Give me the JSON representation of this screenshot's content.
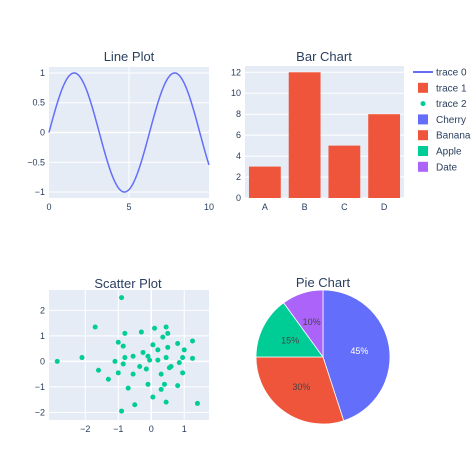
{
  "colors": {
    "plot_bg": "#e5ecf6",
    "grid": "#ffffff",
    "text": "#2a3f5f",
    "line": "#636efa",
    "bar": "#ef553b",
    "scatter": "#00cc96",
    "pie": [
      "#636efa",
      "#ef553b",
      "#00cc96",
      "#ab63fa"
    ]
  },
  "legend": {
    "placement": "top-right",
    "items": [
      {
        "label": "trace 0",
        "kind": "line",
        "color": "#636efa"
      },
      {
        "label": "trace 1",
        "kind": "square",
        "color": "#ef553b"
      },
      {
        "label": "trace 2",
        "kind": "dot",
        "color": "#00cc96"
      },
      {
        "label": "Cherry",
        "kind": "square",
        "color": "#636efa"
      },
      {
        "label": "Banana",
        "kind": "square",
        "color": "#ef553b"
      },
      {
        "label": "Apple",
        "kind": "square",
        "color": "#00cc96"
      },
      {
        "label": "Date",
        "kind": "square",
        "color": "#ab63fa"
      }
    ]
  },
  "chart_data": [
    {
      "type": "line",
      "title": "Line Plot",
      "series": [
        {
          "name": "trace 0",
          "function": "sin(x)",
          "x_range": [
            0,
            10
          ]
        }
      ],
      "xlim": [
        0,
        10
      ],
      "ylim": [
        -1.1,
        1.1
      ],
      "xticks": [
        0,
        5,
        10
      ],
      "xtick_labels": [
        "0",
        "5",
        "10"
      ],
      "yticks": [
        -1,
        -0.5,
        0,
        0.5,
        1
      ],
      "ytick_labels": [
        "−1",
        "−0.5",
        "0",
        "0.5",
        "1"
      ],
      "grid": true
    },
    {
      "type": "bar",
      "title": "Bar Chart",
      "categories": [
        "A",
        "B",
        "C",
        "D"
      ],
      "series": [
        {
          "name": "trace 1",
          "values": [
            3,
            12,
            5,
            8
          ]
        }
      ],
      "ylim": [
        0,
        12.6
      ],
      "yticks": [
        0,
        2,
        4,
        6,
        8,
        10,
        12
      ],
      "ytick_labels": [
        "0",
        "2",
        "4",
        "6",
        "8",
        "10",
        "12"
      ],
      "grid": true
    },
    {
      "type": "scatter",
      "title": "Scatter Plot",
      "series": [
        {
          "name": "trace 2",
          "points": [
            [
              -0.9,
              2.5
            ],
            [
              -1.7,
              1.35
            ],
            [
              -2.85,
              0.0
            ],
            [
              -2.1,
              0.15
            ],
            [
              -0.8,
              1.1
            ],
            [
              -0.3,
              1.15
            ],
            [
              0.1,
              1.3
            ],
            [
              0.45,
              1.35
            ],
            [
              0.5,
              1.1
            ],
            [
              0.35,
              0.95
            ],
            [
              -1.0,
              0.75
            ],
            [
              -0.85,
              0.6
            ],
            [
              0.05,
              0.65
            ],
            [
              0.5,
              0.55
            ],
            [
              0.8,
              0.7
            ],
            [
              1.25,
              0.8
            ],
            [
              -0.8,
              0.15
            ],
            [
              -0.55,
              0.2
            ],
            [
              -0.25,
              0.35
            ],
            [
              -0.1,
              0.2
            ],
            [
              0.2,
              0.05
            ],
            [
              0.45,
              0.15
            ],
            [
              0.95,
              0.15
            ],
            [
              1.25,
              0.12
            ],
            [
              -1.1,
              0.0
            ],
            [
              -0.85,
              -0.1
            ],
            [
              -0.35,
              -0.2
            ],
            [
              -0.05,
              0.05
            ],
            [
              0.6,
              -0.2
            ],
            [
              0.85,
              -0.05
            ],
            [
              -1.6,
              -0.35
            ],
            [
              -1.0,
              -0.45
            ],
            [
              -0.55,
              -0.5
            ],
            [
              -0.15,
              -0.3
            ],
            [
              0.3,
              -0.5
            ],
            [
              0.55,
              -0.25
            ],
            [
              0.95,
              -0.45
            ],
            [
              -0.1,
              -0.9
            ],
            [
              0.4,
              -0.9
            ],
            [
              -0.7,
              -1.05
            ],
            [
              0.3,
              -1.1
            ],
            [
              0.8,
              -0.95
            ],
            [
              -0.9,
              -1.95
            ],
            [
              -0.5,
              -1.7
            ],
            [
              0.05,
              -1.4
            ],
            [
              0.45,
              -1.6
            ],
            [
              1.4,
              -1.65
            ],
            [
              1.0,
              0.45
            ],
            [
              -1.3,
              -0.7
            ],
            [
              0.2,
              0.45
            ]
          ]
        }
      ],
      "xlim": [
        -3.1,
        1.75
      ],
      "ylim": [
        -2.3,
        2.8
      ],
      "xticks": [
        -2,
        -1,
        0,
        1
      ],
      "xtick_labels": [
        "−2",
        "−1",
        "0",
        "1"
      ],
      "yticks": [
        -2,
        -1,
        0,
        1,
        2
      ],
      "ytick_labels": [
        "−2",
        "−1",
        "0",
        "1",
        "2"
      ],
      "grid": true
    },
    {
      "type": "pie",
      "title": "Pie Chart",
      "labels": [
        "Cherry",
        "Banana",
        "Apple",
        "Date"
      ],
      "values": [
        45,
        30,
        15,
        10
      ],
      "text_labels": [
        "45%",
        "30%",
        "15%",
        "10%"
      ],
      "direction": "clockwise",
      "start": "top"
    }
  ]
}
